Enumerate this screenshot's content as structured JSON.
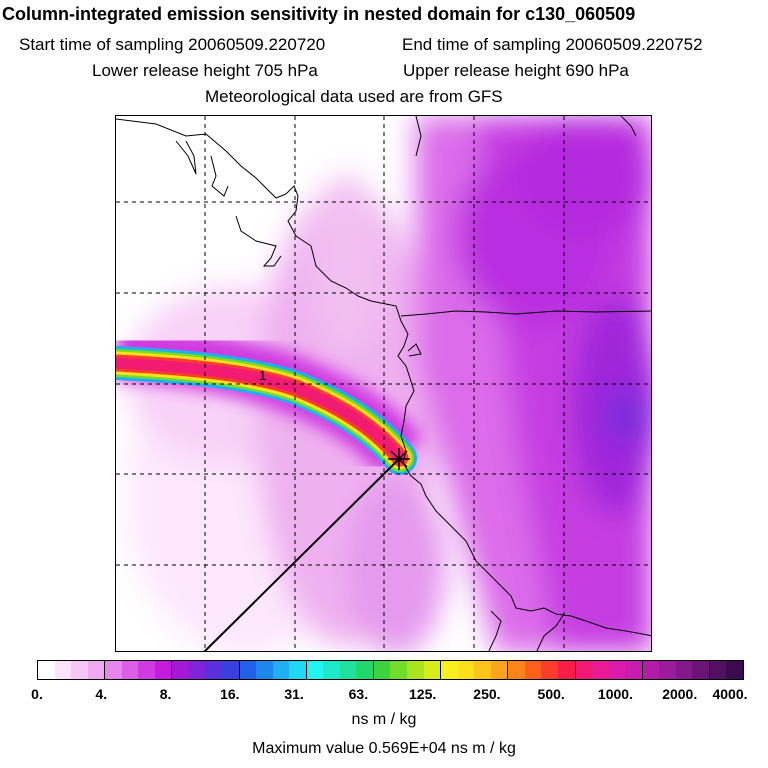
{
  "header": {
    "title": "Column-integrated emission sensitivity in nested domain for c130_060509",
    "start_label": "Start time of sampling 20060509.220720",
    "end_label": "End time of sampling 20060509.220752",
    "lower_label": "Lower release height  705 hPa",
    "upper_label": "Upper release height  690 hPa",
    "met_label": "Meteorological data used are from GFS"
  },
  "map": {
    "marker_label": "1",
    "grid_divisions": 6
  },
  "colorbar": {
    "tick_labels": [
      "0.",
      "4.",
      "8.",
      "16.",
      "31.",
      "63.",
      "125.",
      "250.",
      "500.",
      "1000.",
      "2000.",
      "4000."
    ],
    "colors": [
      "#ffffff",
      "#fbe3fb",
      "#f6c6f6",
      "#f0a8f0",
      "#e785ec",
      "#dc5ee6",
      "#cf3be0",
      "#c21ddc",
      "#a31ad6",
      "#7f24d8",
      "#5a2fdc",
      "#3a3fe0",
      "#2160e8",
      "#1f86ee",
      "#1fb0f2",
      "#1fd8f4",
      "#1ff4f0",
      "#1fe8c8",
      "#1fe09c",
      "#22d86a",
      "#3cd43c",
      "#72dc2a",
      "#a8e420",
      "#d8ec1c",
      "#f8f01c",
      "#fce01c",
      "#fcc41c",
      "#fca41c",
      "#fc841c",
      "#fc601c",
      "#fc3c2c",
      "#f81c48",
      "#f21b74",
      "#e81b94",
      "#dc1ca8",
      "#c81cb0",
      "#b21ca8",
      "#9a1c9c",
      "#82188c",
      "#6a1478",
      "#521064",
      "#3a0c4e"
    ],
    "unit": "ns m / kg"
  },
  "footer": {
    "max_value": "Maximum value  0.569E+04 ns m / kg"
  }
}
